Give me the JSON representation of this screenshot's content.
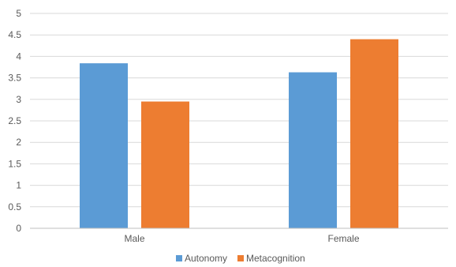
{
  "chart_data": {
    "type": "bar",
    "categories": [
      "Male",
      "Female"
    ],
    "series": [
      {
        "name": "Autonomy",
        "color": "#5b9bd5",
        "values": [
          3.84,
          3.63
        ]
      },
      {
        "name": "Metacognition",
        "color": "#ed7d31",
        "values": [
          2.95,
          4.4
        ]
      }
    ],
    "title": "",
    "xlabel": "",
    "ylabel": "",
    "ylim": [
      0,
      5
    ],
    "yticks": [
      "0",
      "0.5",
      "1",
      "1.5",
      "2",
      "2.5",
      "3",
      "3.5",
      "4",
      "4.5",
      "5"
    ],
    "grid": true,
    "legend_position": "bottom"
  }
}
